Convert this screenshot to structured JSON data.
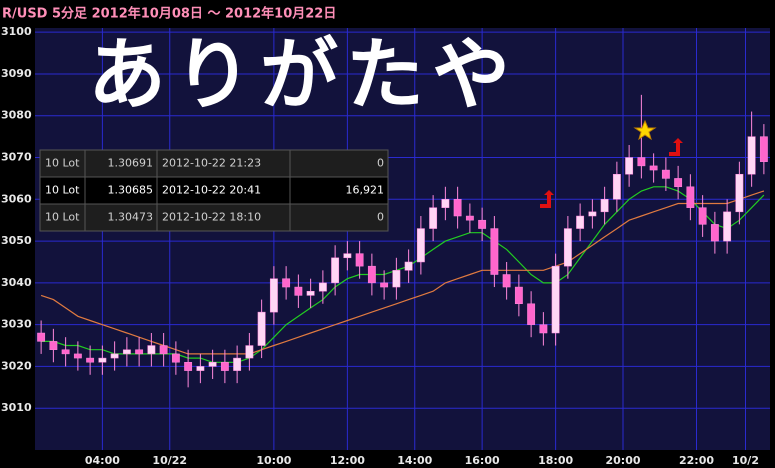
{
  "chart_data": {
    "type": "candlestick",
    "title": "R/USD  5分足  2012年10月08日 ～ 2012年10月22日",
    "annotation": "ありがたや",
    "x": [
      0,
      1,
      2,
      3,
      4,
      5,
      6,
      7,
      8,
      9,
      10,
      11,
      12,
      13,
      14,
      15,
      16,
      17,
      18,
      19,
      20,
      21,
      22,
      23,
      24,
      25,
      26,
      27,
      28,
      29,
      30,
      31,
      32,
      33,
      34,
      35,
      36,
      37,
      38,
      39,
      40,
      41,
      42,
      43,
      44,
      45,
      46,
      47,
      48,
      49,
      50,
      51,
      52,
      53,
      54,
      55,
      56,
      57,
      58,
      59
    ],
    "open": [
      1.3028,
      1.3026,
      1.3024,
      1.3023,
      1.3022,
      1.3021,
      1.3022,
      1.3023,
      1.3024,
      1.3023,
      1.3025,
      1.3023,
      1.3021,
      1.3019,
      1.302,
      1.3021,
      1.3019,
      1.3022,
      1.3025,
      1.3033,
      1.3041,
      1.3039,
      1.3037,
      1.3038,
      1.304,
      1.3046,
      1.3047,
      1.3044,
      1.304,
      1.3039,
      1.3043,
      1.3045,
      1.3053,
      1.3058,
      1.306,
      1.3056,
      1.3055,
      1.3053,
      1.3042,
      1.3039,
      1.3035,
      1.303,
      1.3028,
      1.3044,
      1.3053,
      1.3056,
      1.3057,
      1.306,
      1.3066,
      1.307,
      1.3068,
      1.3067,
      1.3065,
      1.3063,
      1.3058,
      1.3054,
      1.305,
      1.3057,
      1.3066,
      1.3075
    ],
    "high": [
      1.3031,
      1.3029,
      1.3027,
      1.3026,
      1.3025,
      1.3025,
      1.3026,
      1.3027,
      1.3027,
      1.3028,
      1.3028,
      1.3026,
      1.3024,
      1.3023,
      1.3024,
      1.3024,
      1.3025,
      1.3028,
      1.3036,
      1.3044,
      1.3044,
      1.3042,
      1.3041,
      1.3043,
      1.3049,
      1.305,
      1.305,
      1.3047,
      1.3043,
      1.3046,
      1.3048,
      1.3056,
      1.3061,
      1.3063,
      1.3063,
      1.3059,
      1.3058,
      1.3056,
      1.3045,
      1.3042,
      1.3038,
      1.3033,
      1.3047,
      1.3056,
      1.3059,
      1.306,
      1.3063,
      1.3069,
      1.3073,
      1.3085,
      1.3071,
      1.307,
      1.3068,
      1.3066,
      1.3061,
      1.3057,
      1.306,
      1.3069,
      1.3081,
      1.3078
    ],
    "low": [
      1.3023,
      1.3021,
      1.302,
      1.3019,
      1.3018,
      1.3018,
      1.3019,
      1.302,
      1.302,
      1.302,
      1.302,
      1.3018,
      1.3015,
      1.3016,
      1.3017,
      1.3016,
      1.3016,
      1.3019,
      1.3022,
      1.303,
      1.3036,
      1.3034,
      1.3034,
      1.3035,
      1.3037,
      1.3043,
      1.3041,
      1.3037,
      1.3036,
      1.3036,
      1.304,
      1.3042,
      1.305,
      1.3055,
      1.3053,
      1.3052,
      1.305,
      1.3039,
      1.3036,
      1.3032,
      1.3027,
      1.3025,
      1.3025,
      1.3041,
      1.305,
      1.3053,
      1.3054,
      1.3057,
      1.3063,
      1.3065,
      1.3064,
      1.3062,
      1.306,
      1.3055,
      1.3051,
      1.3047,
      1.3047,
      1.3054,
      1.3063,
      1.3066
    ],
    "close": [
      1.3026,
      1.3024,
      1.3023,
      1.3022,
      1.3021,
      1.3022,
      1.3023,
      1.3024,
      1.3023,
      1.3025,
      1.3023,
      1.3021,
      1.3019,
      1.302,
      1.3021,
      1.3019,
      1.3022,
      1.3025,
      1.3033,
      1.3041,
      1.3039,
      1.3037,
      1.3038,
      1.304,
      1.3046,
      1.3047,
      1.3044,
      1.304,
      1.3039,
      1.3043,
      1.3045,
      1.3053,
      1.3058,
      1.306,
      1.3056,
      1.3055,
      1.3053,
      1.3042,
      1.3039,
      1.3035,
      1.303,
      1.3028,
      1.3044,
      1.3053,
      1.3056,
      1.3057,
      1.306,
      1.3066,
      1.307,
      1.3068,
      1.3067,
      1.3065,
      1.3063,
      1.3058,
      1.3054,
      1.305,
      1.3057,
      1.3066,
      1.3075,
      1.3069
    ],
    "up_color": "#ffd6f5",
    "down_color": "#ff66cc",
    "overlays": [
      {
        "color": "#22cc22",
        "values": [
          1.3026,
          1.3026,
          1.3025,
          1.3025,
          1.3024,
          1.3024,
          1.3023,
          1.3023,
          1.3023,
          1.3023,
          1.3023,
          1.3023,
          1.3022,
          1.3022,
          1.3021,
          1.3021,
          1.3021,
          1.3022,
          1.3024,
          1.3027,
          1.303,
          1.3032,
          1.3034,
          1.3036,
          1.3039,
          1.3041,
          1.3042,
          1.3042,
          1.3042,
          1.3043,
          1.3044,
          1.3046,
          1.3048,
          1.305,
          1.3051,
          1.3052,
          1.3052,
          1.305,
          1.3048,
          1.3045,
          1.3042,
          1.304,
          1.304,
          1.3042,
          1.3046,
          1.305,
          1.3054,
          1.3057,
          1.306,
          1.3062,
          1.3063,
          1.3063,
          1.3062,
          1.306,
          1.3057,
          1.3054,
          1.3053,
          1.3055,
          1.3058,
          1.3061
        ]
      },
      {
        "color": "#e07a40",
        "values": [
          1.3037,
          1.3036,
          1.3034,
          1.3032,
          1.3031,
          1.303,
          1.3029,
          1.3028,
          1.3027,
          1.3026,
          1.3025,
          1.3024,
          1.3023,
          1.3023,
          1.3023,
          1.3023,
          1.3023,
          1.3023,
          1.3024,
          1.3025,
          1.3026,
          1.3027,
          1.3028,
          1.3029,
          1.303,
          1.3031,
          1.3032,
          1.3033,
          1.3034,
          1.3035,
          1.3036,
          1.3037,
          1.3038,
          1.304,
          1.3041,
          1.3042,
          1.3043,
          1.3043,
          1.3043,
          1.3043,
          1.3043,
          1.3043,
          1.3044,
          1.3045,
          1.3047,
          1.3049,
          1.3051,
          1.3053,
          1.3055,
          1.3056,
          1.3057,
          1.3058,
          1.3059,
          1.3059,
          1.3059,
          1.3059,
          1.3059,
          1.306,
          1.3061,
          1.3062
        ]
      }
    ],
    "xlim": [
      -0.5,
      59.5
    ],
    "xticks": [
      {
        "value": 5,
        "label": "04:00"
      },
      {
        "value": 10.5,
        "label": "10/22"
      },
      {
        "value": 19,
        "label": "10:00"
      },
      {
        "value": 25,
        "label": "12:00"
      },
      {
        "value": 30.5,
        "label": "14:00"
      },
      {
        "value": 36,
        "label": "16:00"
      },
      {
        "value": 42,
        "label": "18:00"
      },
      {
        "value": 47.5,
        "label": "20:00"
      },
      {
        "value": 53.5,
        "label": "22:00"
      },
      {
        "value": 57.5,
        "label": "10/2"
      }
    ],
    "ylim": [
      1.3,
      1.3101
    ],
    "yticks": [
      {
        "value": 1.301,
        "label": "3010"
      },
      {
        "value": 1.302,
        "label": "3020"
      },
      {
        "value": 1.303,
        "label": "3030"
      },
      {
        "value": 1.304,
        "label": "3040"
      },
      {
        "value": 1.305,
        "label": "3050"
      },
      {
        "value": 1.306,
        "label": "3060"
      },
      {
        "value": 1.307,
        "label": "3070"
      },
      {
        "value": 1.308,
        "label": "3080"
      },
      {
        "value": 1.309,
        "label": "3090"
      },
      {
        "value": 1.31,
        "label": "3100"
      }
    ],
    "grid": true
  },
  "order_table": {
    "rows": [
      [
        "10 Lot",
        "1.30691",
        "2012-10-22 21:23",
        "0"
      ],
      [
        "10 Lot",
        "1.30685",
        "2012-10-22 20:41",
        "16,921"
      ],
      [
        "10 Lot",
        "1.30473",
        "2012-10-22 18:10",
        "0"
      ]
    ],
    "selected_row": 1
  }
}
